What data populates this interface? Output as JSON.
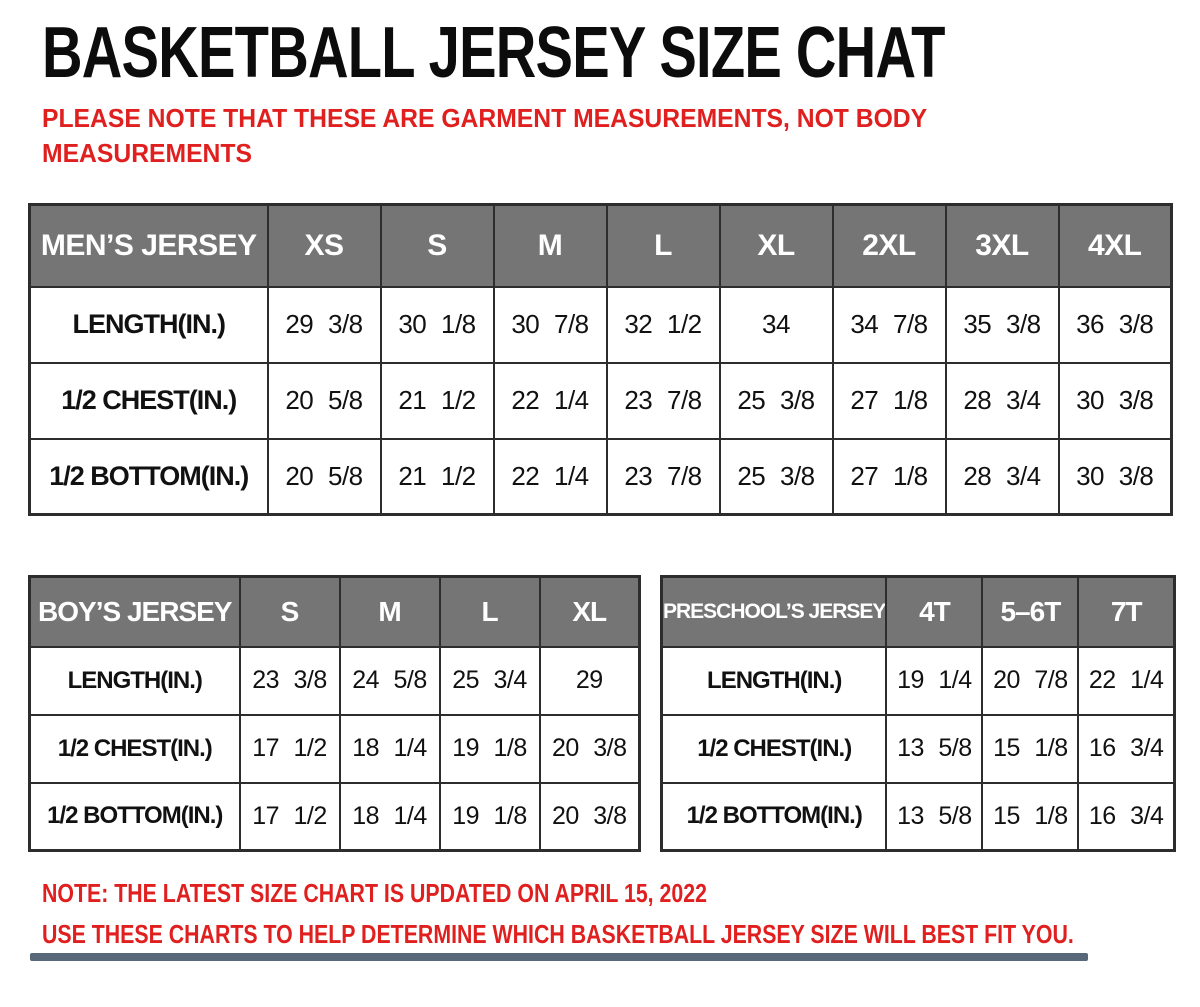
{
  "title": "BASKETBALL JERSEY SIZE CHAT",
  "top_note_lines": [
    "PLEASE NOTE THAT THESE ARE GARMENT MEASUREMENTS, NOT BODY",
    "MEASUREMENTS"
  ],
  "tables": {
    "mens": {
      "title": "MEN’S JERSEY",
      "sizes": [
        "XS",
        "S",
        "M",
        "L",
        "XL",
        "2XL",
        "3XL",
        "4XL"
      ],
      "rows": [
        {
          "label": "LENGTH(IN.)",
          "values": [
            "29 3/8",
            "30 1/8",
            "30 7/8",
            "32 1/2",
            "34",
            "34 7/8",
            "35 3/8",
            "36 3/8"
          ]
        },
        {
          "label": "1/2 CHEST(IN.)",
          "values": [
            "20 5/8",
            "21 1/2",
            "22 1/4",
            "23 7/8",
            "25 3/8",
            "27 1/8",
            "28 3/4",
            "30 3/8"
          ]
        },
        {
          "label": "1/2 BOTTOM(IN.)",
          "values": [
            "20 5/8",
            "21 1/2",
            "22 1/4",
            "23 7/8",
            "25 3/8",
            "27 1/8",
            "28 3/4",
            "30 3/8"
          ]
        }
      ]
    },
    "boys": {
      "title": "BOY’S JERSEY",
      "sizes": [
        "S",
        "M",
        "L",
        "XL"
      ],
      "rows": [
        {
          "label": "LENGTH(IN.)",
          "values": [
            "23 3/8",
            "24 5/8",
            "25 3/4",
            "29"
          ]
        },
        {
          "label": "1/2 CHEST(IN.)",
          "values": [
            "17 1/2",
            "18 1/4",
            "19 1/8",
            "20 3/8"
          ]
        },
        {
          "label": "1/2 BOTTOM(IN.)",
          "values": [
            "17 1/2",
            "18 1/4",
            "19 1/8",
            "20 3/8"
          ]
        }
      ]
    },
    "preschool": {
      "title": "PRESCHOOL’S JERSEY",
      "sizes": [
        "4T",
        "5–6T",
        "7T"
      ],
      "rows": [
        {
          "label": "LENGTH(IN.)",
          "values": [
            "19 1/4",
            "20 7/8",
            "22 1/4"
          ]
        },
        {
          "label": "1/2 CHEST(IN.)",
          "values": [
            "13 5/8",
            "15 1/8",
            "16 3/4"
          ]
        },
        {
          "label": "1/2 BOTTOM(IN.)",
          "values": [
            "13 5/8",
            "15 1/8",
            "16 3/4"
          ]
        }
      ]
    }
  },
  "bottom_notes": [
    "NOTE: THE LATEST SIZE CHART IS UPDATED ON APRIL 15, 2022",
    "USE THESE CHARTS TO HELP DETERMINE WHICH  BASKETBALL JERSEY  SIZE WILL BEST FIT YOU."
  ],
  "colors": {
    "accent_red": "#e01f1f",
    "header_gray": "#757575",
    "border_dark": "#2d2d2d",
    "footer_bar": "#2e4258"
  }
}
